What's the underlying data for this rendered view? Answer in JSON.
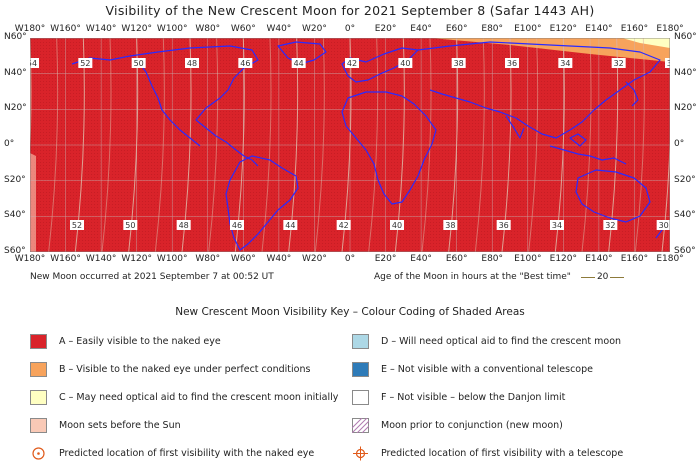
{
  "title": "Visibility of the New Crescent Moon for 2021 September 8 (Safar 1443 AH)",
  "map": {
    "lon_labels_top": [
      "W180°",
      "W160°",
      "W140°",
      "W120°",
      "W100°",
      "W80°",
      "W60°",
      "W40°",
      "W20°",
      "0°",
      "E20°",
      "E40°",
      "E60°",
      "E80°",
      "E100°",
      "E120°",
      "E140°",
      "E160°",
      "E180°"
    ],
    "lon_labels_bottom": [
      "W180°",
      "W160°",
      "W140°",
      "W120°",
      "W100°",
      "W80°",
      "W60°",
      "W40°",
      "W20°",
      "0°",
      "E20°",
      "E40°",
      "E60°",
      "E80°",
      "E100°",
      "E120°",
      "E140°",
      "E160°",
      "E180°"
    ],
    "lat_labels": [
      "N60°",
      "N40°",
      "N20°",
      "0°",
      "S20°",
      "S40°",
      "S60°"
    ],
    "lon_range": [
      -180,
      180
    ],
    "lat_range": [
      -60,
      60
    ],
    "grid": true,
    "zone_colors": {
      "A": "#d9232a",
      "B": "#f7a35c",
      "C": "#ffffc2",
      "D": "#add8e6",
      "E": "#2e7bb8",
      "F": "#ffffff",
      "moonset": "#f9c9b6"
    },
    "age_contours_top": [
      "54",
      "52",
      "50",
      "48",
      "46",
      "44",
      "42",
      "40",
      "38",
      "36",
      "34",
      "32",
      "30"
    ],
    "age_contours_bottom": [
      "52",
      "50",
      "48",
      "46",
      "44",
      "42",
      "40",
      "38",
      "36",
      "34",
      "32",
      "30"
    ]
  },
  "info": {
    "new_moon": "New Moon occurred at 2021 September 7 at 00:52 UT",
    "age_caption": "Age of the Moon in hours at the \"Best time\"",
    "age_sample": "20"
  },
  "key": {
    "title": "New Crescent Moon Visibility Key – Colour Coding of Shaded Areas",
    "left": [
      {
        "label": "A – Easily visible to the naked eye",
        "color": "#d9232a"
      },
      {
        "label": "B – Visible to the naked eye under perfect conditions",
        "color": "#f7a35c"
      },
      {
        "label": "C – May need optical aid to find the crescent moon initially",
        "color": "#ffffc2"
      },
      {
        "label": "Moon sets before the Sun",
        "color": "#f9c9b6"
      },
      {
        "label": "Predicted location of first visibility with the naked eye",
        "icon": "circle-dot-icon"
      }
    ],
    "right": [
      {
        "label": "D – Will need optical aid to find the crescent moon",
        "color": "#add8e6"
      },
      {
        "label": "E – Not visible with a conventional telescope",
        "color": "#2e7bb8"
      },
      {
        "label": "F – Not visible – below the Danjon limit",
        "color": "#ffffff"
      },
      {
        "label": "Moon prior to conjunction (new moon)",
        "icon": "hatch-icon"
      },
      {
        "label": "Predicted location of first visibility with a telescope",
        "icon": "crosshair-circle-icon"
      }
    ]
  }
}
